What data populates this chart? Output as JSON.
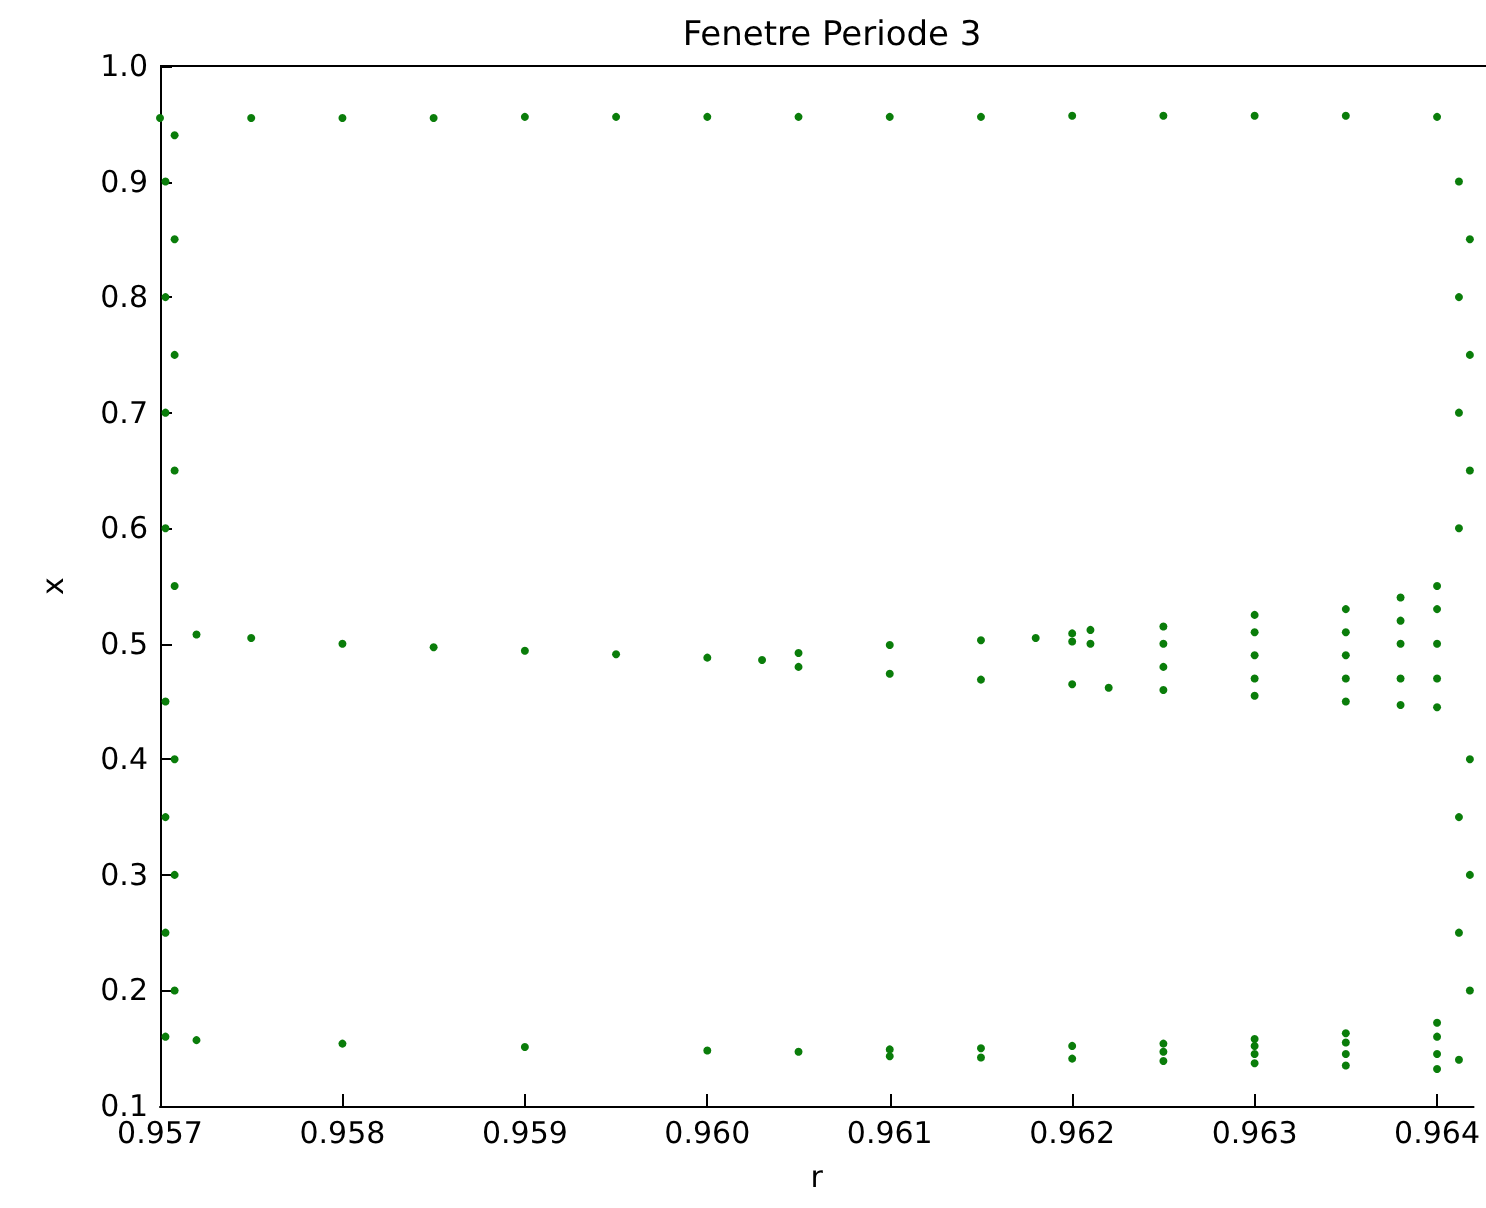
{
  "chart_data": {
    "type": "scatter",
    "title": "Fenetre Periode 3",
    "xlabel": "r",
    "ylabel": "x",
    "xlim": [
      0.957,
      0.9642
    ],
    "xticks": [
      0.957,
      0.958,
      0.959,
      {
        "value": 0.96,
        "label": "0.960"
      },
      0.961,
      0.962,
      0.963,
      0.964
    ],
    "ylim": [
      0.1,
      1.0
    ],
    "yticks": [
      0.1,
      0.2,
      0.3,
      0.4,
      0.5,
      0.6,
      0.7,
      0.8,
      0.9,
      {
        "value": 1.0,
        "label": "1.0"
      }
    ],
    "marker": "circle",
    "series": [
      {
        "color": "#0a7d0a",
        "x": [
          0.957,
          0.9575,
          0.958,
          0.9585,
          0.959,
          0.9595,
          0.96,
          0.9605,
          0.961,
          0.9615,
          0.962,
          0.9625,
          0.963,
          0.9635,
          0.964,
          0.9572,
          0.9575,
          0.958,
          0.9585,
          0.959,
          0.9595,
          0.96,
          0.9603,
          0.9605,
          0.961,
          0.9615,
          0.9618,
          0.962,
          0.962,
          0.9621,
          0.9621,
          0.9605,
          0.961,
          0.9615,
          0.962,
          0.9622,
          0.9625,
          0.9625,
          0.9625,
          0.9625,
          0.963,
          0.963,
          0.963,
          0.963,
          0.963,
          0.9635,
          0.9635,
          0.9635,
          0.9635,
          0.9635,
          0.9638,
          0.9638,
          0.9638,
          0.9638,
          0.9638,
          0.964,
          0.964,
          0.964,
          0.964,
          0.964,
          0.9572,
          0.958,
          0.959,
          0.96,
          0.9605,
          0.961,
          0.961,
          0.9615,
          0.9615,
          0.962,
          0.962,
          0.9625,
          0.9625,
          0.9625,
          0.963,
          0.963,
          0.963,
          0.963,
          0.9635,
          0.9635,
          0.9635,
          0.9635,
          0.964,
          0.964,
          0.964,
          0.964,
          0.95703,
          0.95708,
          0.95703,
          0.95708,
          0.95703,
          0.95708,
          0.95703,
          0.95708,
          0.95703,
          0.95708,
          0.95703,
          0.95708,
          0.95703,
          0.95708,
          0.95703,
          0.95708,
          0.96412,
          0.96418,
          0.96412,
          0.96418,
          0.96412,
          0.96418,
          0.96412,
          0.96418,
          0.96412,
          0.96418,
          0.96412,
          0.96418,
          0.96412
        ],
        "values": [
          0.955,
          0.955,
          0.955,
          0.955,
          0.956,
          0.956,
          0.956,
          0.956,
          0.956,
          0.956,
          0.957,
          0.957,
          0.957,
          0.957,
          0.956,
          0.508,
          0.505,
          0.5,
          0.497,
          0.494,
          0.491,
          0.488,
          0.486,
          0.492,
          0.499,
          0.503,
          0.505,
          0.509,
          0.502,
          0.512,
          0.5,
          0.48,
          0.474,
          0.469,
          0.465,
          0.462,
          0.46,
          0.48,
          0.5,
          0.515,
          0.455,
          0.47,
          0.49,
          0.51,
          0.525,
          0.45,
          0.47,
          0.49,
          0.51,
          0.53,
          0.447,
          0.47,
          0.5,
          0.52,
          0.54,
          0.445,
          0.47,
          0.5,
          0.53,
          0.55,
          0.157,
          0.154,
          0.151,
          0.148,
          0.147,
          0.149,
          0.143,
          0.15,
          0.142,
          0.152,
          0.141,
          0.139,
          0.147,
          0.154,
          0.137,
          0.145,
          0.152,
          0.158,
          0.135,
          0.145,
          0.155,
          0.163,
          0.132,
          0.145,
          0.16,
          0.172,
          0.16,
          0.2,
          0.25,
          0.3,
          0.35,
          0.4,
          0.45,
          0.55,
          0.6,
          0.65,
          0.7,
          0.75,
          0.8,
          0.85,
          0.9,
          0.94,
          0.14,
          0.2,
          0.25,
          0.3,
          0.35,
          0.4,
          0.6,
          0.65,
          0.7,
          0.75,
          0.8,
          0.85,
          0.9
        ]
      }
    ]
  }
}
